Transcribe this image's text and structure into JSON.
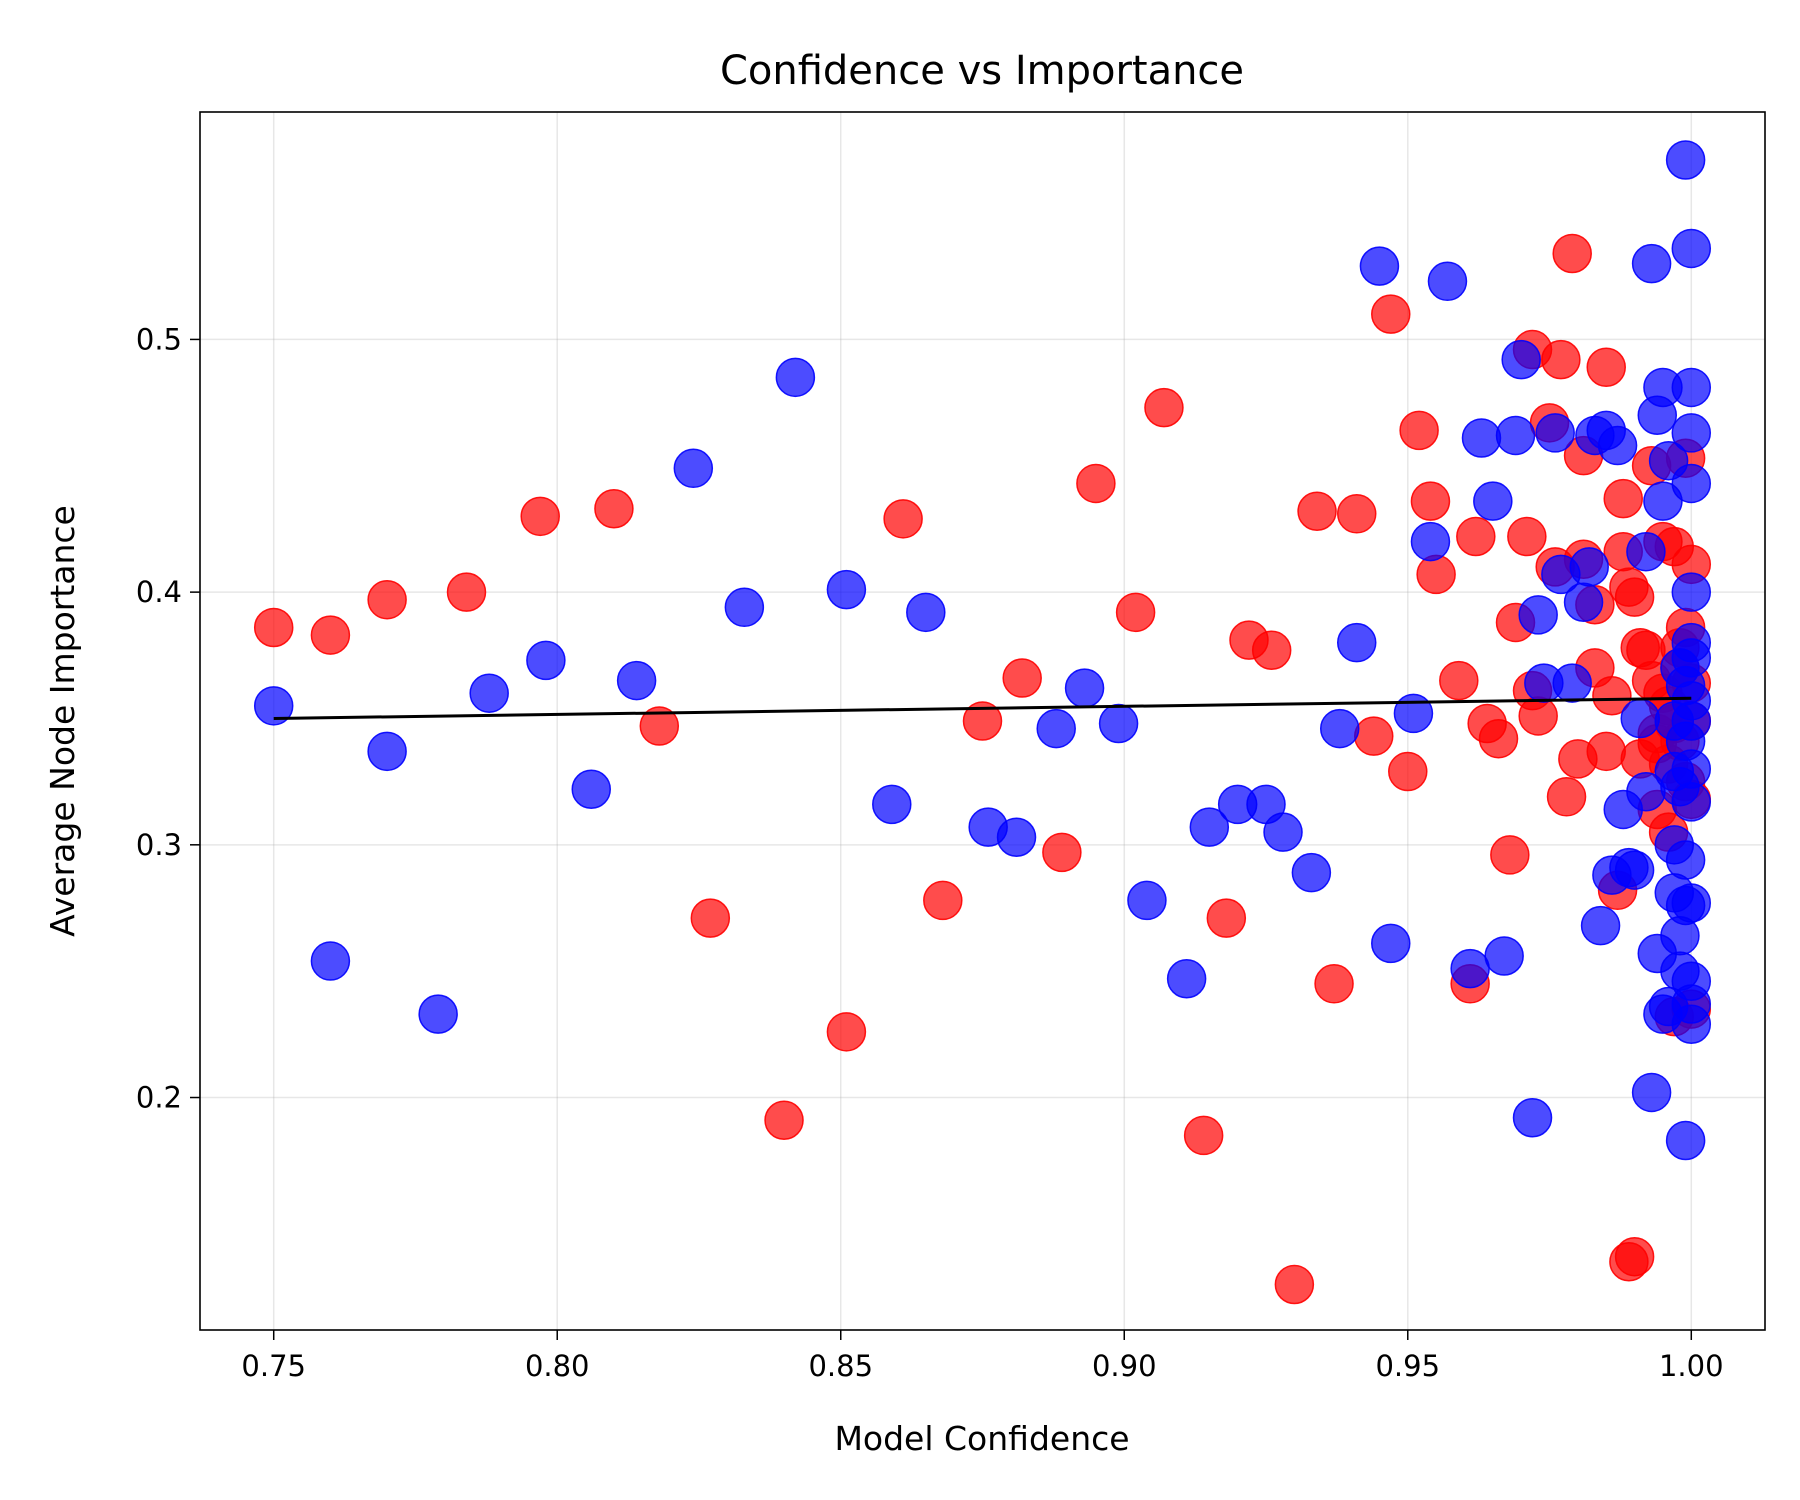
{
  "chart_data": {
    "type": "scatter",
    "title": "Confidence vs Importance",
    "xlabel": "Model Confidence",
    "ylabel": "Average Node Importance",
    "xlim": [
      0.737,
      1.013
    ],
    "ylim": [
      0.108,
      0.59
    ],
    "xticks": [
      0.75,
      0.8,
      0.85,
      0.9,
      0.95,
      1.0
    ],
    "xtick_labels": [
      "0.75",
      "0.80",
      "0.85",
      "0.90",
      "0.95",
      "1.00"
    ],
    "yticks": [
      0.2,
      0.3,
      0.4,
      0.5
    ],
    "ytick_labels": [
      "0.2",
      "0.3",
      "0.4",
      "0.5"
    ],
    "grid": true,
    "series": [
      {
        "color": "#ff0000",
        "points": [
          [
            0.75,
            0.386
          ],
          [
            0.76,
            0.383
          ],
          [
            0.77,
            0.397
          ],
          [
            0.784,
            0.4
          ],
          [
            0.797,
            0.43
          ],
          [
            0.81,
            0.433
          ],
          [
            0.818,
            0.347
          ],
          [
            0.827,
            0.271
          ],
          [
            0.84,
            0.191
          ],
          [
            0.851,
            0.226
          ],
          [
            0.861,
            0.429
          ],
          [
            0.868,
            0.278
          ],
          [
            0.875,
            0.349
          ],
          [
            0.882,
            0.366
          ],
          [
            0.889,
            0.297
          ],
          [
            0.895,
            0.443
          ],
          [
            0.902,
            0.392
          ],
          [
            0.907,
            0.473
          ],
          [
            0.914,
            0.185
          ],
          [
            0.918,
            0.271
          ],
          [
            0.922,
            0.381
          ],
          [
            0.926,
            0.377
          ],
          [
            0.93,
            0.126
          ],
          [
            0.934,
            0.432
          ],
          [
            0.937,
            0.245
          ],
          [
            0.941,
            0.431
          ],
          [
            0.944,
            0.343
          ],
          [
            0.947,
            0.51
          ],
          [
            0.95,
            0.329
          ],
          [
            0.952,
            0.464
          ],
          [
            0.954,
            0.436
          ],
          [
            0.955,
            0.407
          ],
          [
            0.959,
            0.365
          ],
          [
            0.961,
            0.245
          ],
          [
            0.962,
            0.422
          ],
          [
            0.964,
            0.348
          ],
          [
            0.966,
            0.342
          ],
          [
            0.968,
            0.296
          ],
          [
            0.969,
            0.388
          ],
          [
            0.971,
            0.422
          ],
          [
            0.972,
            0.361
          ],
          [
            0.972,
            0.496
          ],
          [
            0.973,
            0.351
          ],
          [
            0.975,
            0.467
          ],
          [
            0.976,
            0.41
          ],
          [
            0.977,
            0.492
          ],
          [
            0.978,
            0.319
          ],
          [
            0.979,
            0.534
          ],
          [
            0.98,
            0.334
          ],
          [
            0.981,
            0.413
          ],
          [
            0.981,
            0.454
          ],
          [
            0.983,
            0.395
          ],
          [
            0.983,
            0.37
          ],
          [
            0.985,
            0.337
          ],
          [
            0.985,
            0.489
          ],
          [
            0.986,
            0.359
          ],
          [
            0.987,
            0.282
          ],
          [
            0.988,
            0.416
          ],
          [
            0.988,
            0.437
          ],
          [
            0.989,
            0.402
          ],
          [
            0.989,
            0.135
          ],
          [
            0.99,
            0.137
          ],
          [
            0.99,
            0.398
          ],
          [
            0.991,
            0.378
          ],
          [
            0.991,
            0.334
          ],
          [
            0.992,
            0.377
          ],
          [
            0.993,
            0.45
          ],
          [
            0.993,
            0.365
          ],
          [
            0.994,
            0.34
          ],
          [
            0.994,
            0.314
          ],
          [
            0.995,
            0.36
          ],
          [
            0.995,
            0.42
          ],
          [
            0.996,
            0.355
          ],
          [
            0.996,
            0.332
          ],
          [
            0.997,
            0.418
          ],
          [
            0.997,
            0.348
          ],
          [
            0.997,
            0.232
          ],
          [
            0.998,
            0.37
          ],
          [
            0.998,
            0.341
          ],
          [
            0.999,
            0.453
          ],
          [
            0.999,
            0.386
          ],
          [
            0.999,
            0.325
          ],
          [
            1.0,
            0.364
          ],
          [
            1.0,
            0.349
          ],
          [
            1.0,
            0.318
          ],
          [
            1.0,
            0.235
          ],
          [
            1.0,
            0.411
          ],
          [
            0.998,
            0.378
          ],
          [
            0.996,
            0.305
          ],
          [
            0.994,
            0.344
          ]
        ]
      },
      {
        "color": "#0000ff",
        "points": [
          [
            0.75,
            0.355
          ],
          [
            0.76,
            0.254
          ],
          [
            0.77,
            0.337
          ],
          [
            0.779,
            0.233
          ],
          [
            0.788,
            0.36
          ],
          [
            0.798,
            0.373
          ],
          [
            0.806,
            0.322
          ],
          [
            0.814,
            0.365
          ],
          [
            0.824,
            0.449
          ],
          [
            0.833,
            0.394
          ],
          [
            0.842,
            0.485
          ],
          [
            0.851,
            0.401
          ],
          [
            0.859,
            0.316
          ],
          [
            0.865,
            0.392
          ],
          [
            0.876,
            0.307
          ],
          [
            0.881,
            0.303
          ],
          [
            0.888,
            0.346
          ],
          [
            0.893,
            0.362
          ],
          [
            0.899,
            0.348
          ],
          [
            0.904,
            0.278
          ],
          [
            0.911,
            0.247
          ],
          [
            0.915,
            0.307
          ],
          [
            0.92,
            0.316
          ],
          [
            0.925,
            0.316
          ],
          [
            0.928,
            0.305
          ],
          [
            0.933,
            0.289
          ],
          [
            0.938,
            0.346
          ],
          [
            0.941,
            0.38
          ],
          [
            0.945,
            0.529
          ],
          [
            0.947,
            0.261
          ],
          [
            0.951,
            0.352
          ],
          [
            0.954,
            0.42
          ],
          [
            0.957,
            0.523
          ],
          [
            0.961,
            0.251
          ],
          [
            0.963,
            0.461
          ],
          [
            0.965,
            0.436
          ],
          [
            0.967,
            0.256
          ],
          [
            0.969,
            0.462
          ],
          [
            0.97,
            0.492
          ],
          [
            0.972,
            0.192
          ],
          [
            0.973,
            0.391
          ],
          [
            0.974,
            0.364
          ],
          [
            0.976,
            0.463
          ],
          [
            0.977,
            0.407
          ],
          [
            0.979,
            0.364
          ],
          [
            0.981,
            0.396
          ],
          [
            0.982,
            0.41
          ],
          [
            0.983,
            0.462
          ],
          [
            0.984,
            0.268
          ],
          [
            0.985,
            0.464
          ],
          [
            0.986,
            0.288
          ],
          [
            0.987,
            0.458
          ],
          [
            0.988,
            0.314
          ],
          [
            0.989,
            0.291
          ],
          [
            0.99,
            0.29
          ],
          [
            0.991,
            0.35
          ],
          [
            0.992,
            0.416
          ],
          [
            0.992,
            0.321
          ],
          [
            0.993,
            0.53
          ],
          [
            0.993,
            0.202
          ],
          [
            0.994,
            0.47
          ],
          [
            0.994,
            0.257
          ],
          [
            0.995,
            0.481
          ],
          [
            0.995,
            0.436
          ],
          [
            0.995,
            0.233
          ],
          [
            0.996,
            0.452
          ],
          [
            0.996,
            0.236
          ],
          [
            0.997,
            0.3
          ],
          [
            0.997,
            0.349
          ],
          [
            0.997,
            0.281
          ],
          [
            0.998,
            0.323
          ],
          [
            0.998,
            0.25
          ],
          [
            0.998,
            0.37
          ],
          [
            0.999,
            0.571
          ],
          [
            0.999,
            0.363
          ],
          [
            0.999,
            0.294
          ],
          [
            0.999,
            0.183
          ],
          [
            0.999,
            0.276
          ],
          [
            1.0,
            0.536
          ],
          [
            1.0,
            0.481
          ],
          [
            1.0,
            0.463
          ],
          [
            1.0,
            0.443
          ],
          [
            1.0,
            0.4
          ],
          [
            1.0,
            0.38
          ],
          [
            1.0,
            0.374
          ],
          [
            1.0,
            0.357
          ],
          [
            1.0,
            0.349
          ],
          [
            1.0,
            0.33
          ],
          [
            1.0,
            0.317
          ],
          [
            1.0,
            0.277
          ],
          [
            1.0,
            0.246
          ],
          [
            1.0,
            0.229
          ],
          [
            0.999,
            0.341
          ],
          [
            0.998,
            0.264
          ],
          [
            0.997,
            0.329
          ],
          [
            1.0,
            0.237
          ]
        ]
      }
    ],
    "trendline": {
      "color": "#000000",
      "x": [
        0.75,
        1.0
      ],
      "y": [
        0.35,
        0.358
      ]
    }
  }
}
